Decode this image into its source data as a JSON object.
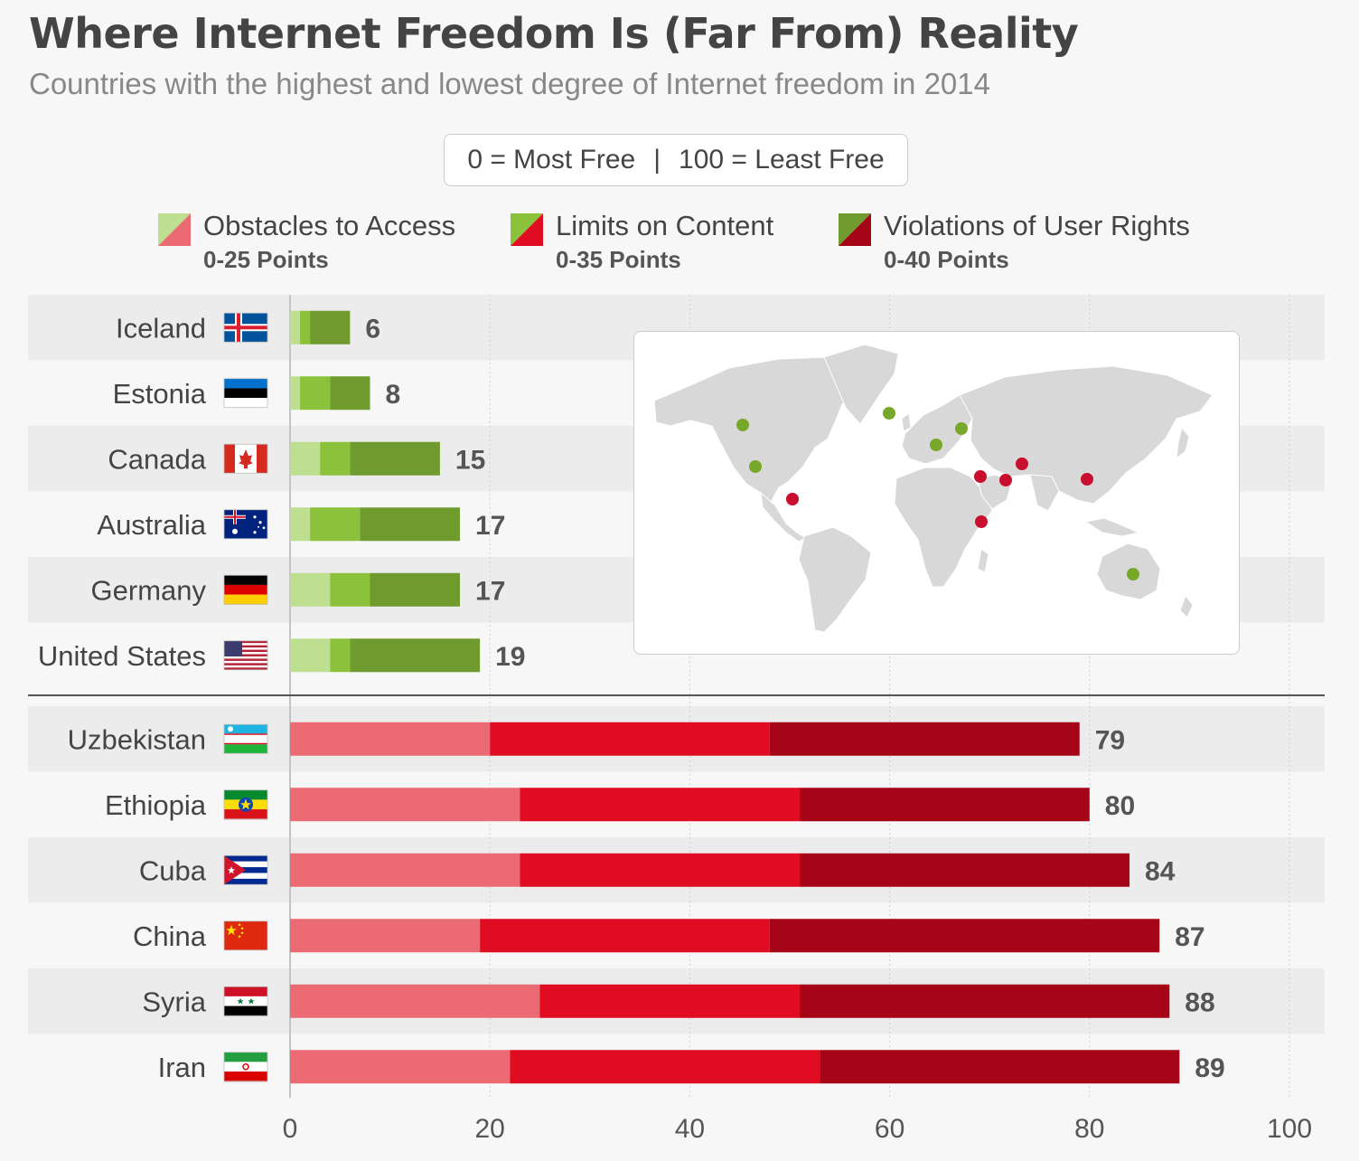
{
  "header": {
    "title": "Where Internet Freedom Is (Far From) Reality",
    "subtitle": "Countries with the highest and lowest degree of Internet freedom in 2014"
  },
  "scale_note": {
    "left": "0 = Most Free",
    "separator": "|",
    "right": "100 = Least Free"
  },
  "legend": [
    {
      "label": "Obstacles to Access",
      "range": "0-25 Points",
      "light": "#bedf8f",
      "dark": "#ec6a73"
    },
    {
      "label": "Limits on Content",
      "range": "0-35 Points",
      "light": "#8cc13c",
      "dark": "#df0c22"
    },
    {
      "label": "Violations of User Rights",
      "range": "0-40 Points",
      "light": "#6e9a2e",
      "dark": "#a60417"
    }
  ],
  "colors": {
    "free": [
      "#bedf8f",
      "#8cc13c",
      "#6e9a2e"
    ],
    "notfree": [
      "#ec6a73",
      "#df0c22",
      "#a60417"
    ],
    "row_band": "#ececec",
    "map_land": "#d8d8d8",
    "dot_free": "#77a82a",
    "dot_notfree": "#c8102e"
  },
  "chart_data": {
    "type": "bar",
    "orientation": "horizontal",
    "stacked": true,
    "xlim": [
      0,
      100
    ],
    "xticks": [
      0,
      20,
      40,
      60,
      80,
      100
    ],
    "series_names": [
      "Obstacles to Access",
      "Limits on Content",
      "Violations of User Rights"
    ],
    "groups": [
      {
        "name": "most_free",
        "rows": [
          {
            "country": "Iceland",
            "flag": "iceland-flag",
            "values": [
              1,
              1,
              4
            ],
            "total": 6
          },
          {
            "country": "Estonia",
            "flag": "estonia-flag",
            "values": [
              1,
              3,
              4
            ],
            "total": 8
          },
          {
            "country": "Canada",
            "flag": "canada-flag",
            "values": [
              3,
              3,
              9
            ],
            "total": 15
          },
          {
            "country": "Australia",
            "flag": "australia-flag",
            "values": [
              2,
              5,
              10
            ],
            "total": 17
          },
          {
            "country": "Germany",
            "flag": "germany-flag",
            "values": [
              4,
              4,
              9
            ],
            "total": 17
          },
          {
            "country": "United States",
            "flag": "united-states-flag",
            "values": [
              4,
              2,
              13
            ],
            "total": 19
          }
        ]
      },
      {
        "name": "least_free",
        "rows": [
          {
            "country": "Uzbekistan",
            "flag": "uzbekistan-flag",
            "values": [
              20,
              28,
              31
            ],
            "total": 79
          },
          {
            "country": "Ethiopia",
            "flag": "ethiopia-flag",
            "values": [
              23,
              28,
              29
            ],
            "total": 80
          },
          {
            "country": "Cuba",
            "flag": "cuba-flag",
            "values": [
              23,
              28,
              33
            ],
            "total": 84
          },
          {
            "country": "China",
            "flag": "china-flag",
            "values": [
              19,
              29,
              39
            ],
            "total": 87
          },
          {
            "country": "Syria",
            "flag": "syria-flag",
            "values": [
              25,
              26,
              37
            ],
            "total": 88
          },
          {
            "country": "Iran",
            "flag": "iran-flag",
            "values": [
              22,
              31,
              36
            ],
            "total": 89
          }
        ]
      }
    ]
  },
  "map": {
    "name": "world-map",
    "dots_free": [
      "Canada",
      "United States",
      "Iceland",
      "Germany",
      "Estonia",
      "Australia"
    ],
    "dots_notfree": [
      "Cuba",
      "Syria",
      "Iran",
      "Uzbekistan",
      "China",
      "Ethiopia"
    ]
  }
}
